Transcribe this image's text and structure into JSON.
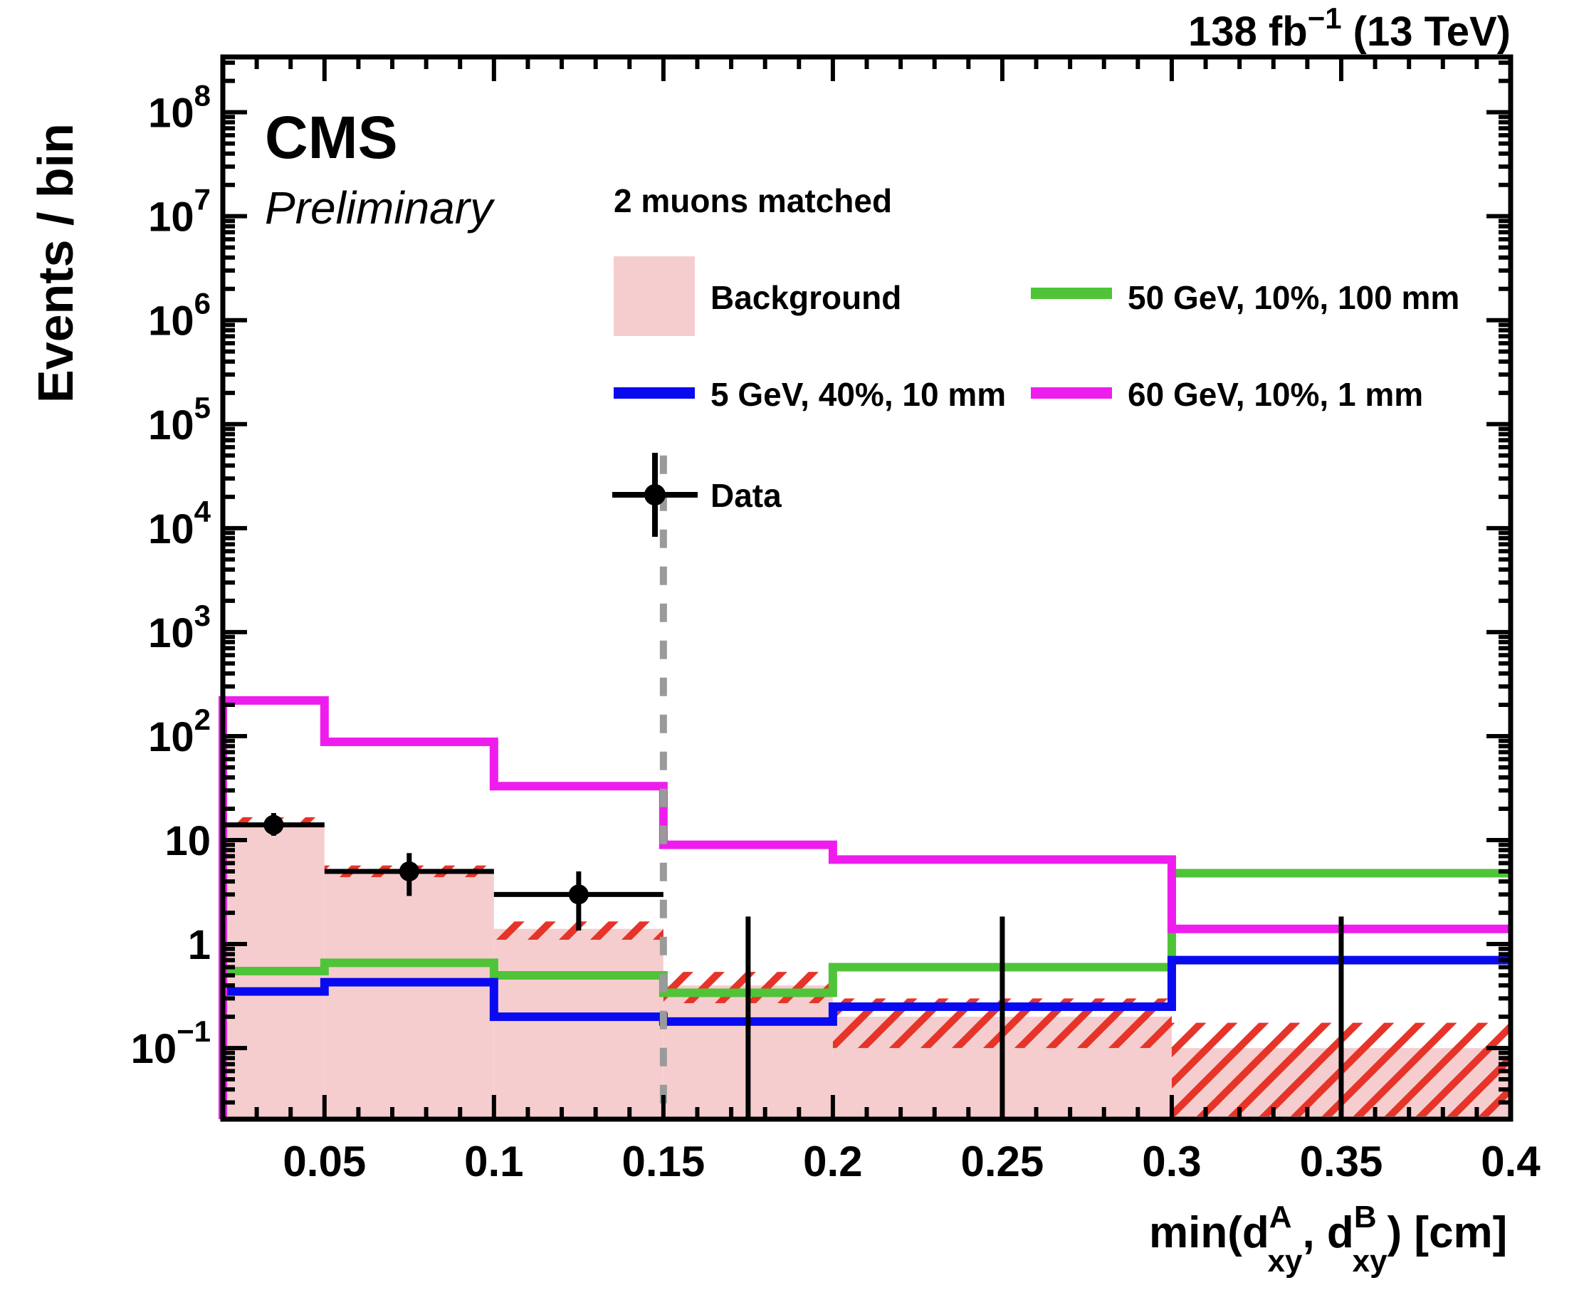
{
  "header": {
    "experiment": "CMS",
    "status": "Preliminary",
    "lumi_prefix": "138 fb",
    "lumi_exponent": "−1",
    "lumi_suffix": " (13 TeV)"
  },
  "axes": {
    "y_title": "Events / bin",
    "x_title": {
      "p1": "min(d",
      "sup1": "A",
      "sub1": "xy",
      "p2": ", d",
      "sup2": "B",
      "sub2": "xy",
      "p3": ") [cm]"
    }
  },
  "chart_data": {
    "type": "line",
    "variant": "step-histogram-with-filled-background",
    "title": "2 muons matched",
    "xlabel": "min(d_xy^A, d_xy^B) [cm]",
    "ylabel": "Events / bin",
    "x_scale": "linear",
    "y_scale": "log",
    "xlim": [
      0.02,
      0.4
    ],
    "ylim": [
      0.0207,
      340000000
    ],
    "y_decade_min": -1,
    "y_decade_max": 8,
    "grid": "off",
    "legend_position": "top-center",
    "bin_edges": [
      0.02,
      0.05,
      0.1,
      0.15,
      0.2,
      0.3,
      0.4
    ],
    "x_major_ticks": [
      0.05,
      0.1,
      0.15,
      0.2,
      0.25,
      0.3,
      0.35,
      0.4
    ],
    "x_major_labels": [
      "0.05",
      "0.1",
      "0.15",
      "0.2",
      "0.25",
      "0.3",
      "0.35",
      "0.4"
    ],
    "x_minor_step": 0.01,
    "background": {
      "name": "Background",
      "fill_color": "#f6cdce",
      "hatch_color": "#e63429",
      "values": [
        14.5,
        5.0,
        1.4,
        0.4,
        0.2,
        0.1
      ],
      "band_low": [
        13.3,
        4.4,
        1.1,
        0.27,
        0.1,
        0.022
      ],
      "band_high": [
        16.6,
        5.7,
        1.65,
        0.54,
        0.3,
        0.175
      ]
    },
    "series": [
      {
        "name": "5 GeV, 40%, 10 mm",
        "color": "#0a0af0",
        "values": [
          0.35,
          0.43,
          0.2,
          0.18,
          0.25,
          0.7
        ]
      },
      {
        "name": "50 GeV, 10%, 100 mm",
        "color": "#4fc438",
        "values": [
          0.55,
          0.66,
          0.5,
          0.34,
          0.6,
          4.8
        ]
      },
      {
        "name": "60 GeV, 10%, 1 mm",
        "color": "#ee1dee",
        "values": [
          220,
          88,
          33,
          9,
          6.5,
          1.4
        ]
      }
    ],
    "data_points": {
      "name": "Data",
      "color": "#000000",
      "points": [
        {
          "x": 0.035,
          "y": 14,
          "y_low": 11,
          "y_high": 18.2,
          "x_low": 0.02,
          "x_high": 0.05
        },
        {
          "x": 0.075,
          "y": 5,
          "y_low": 2.9,
          "y_high": 7.5,
          "x_low": 0.05,
          "x_high": 0.1
        },
        {
          "x": 0.125,
          "y": 3,
          "y_low": 1.35,
          "y_high": 5.0,
          "x_low": 0.1,
          "x_high": 0.15
        },
        {
          "x": 0.175,
          "y": 0,
          "y_high": 1.84
        },
        {
          "x": 0.25,
          "y": 0,
          "y_high": 1.84
        },
        {
          "x": 0.35,
          "y": 0,
          "y_high": 1.84
        }
      ]
    },
    "cut_line": {
      "x": 0.15,
      "color": "#9a9a9a",
      "style": "dashed",
      "y_top": 50000
    }
  }
}
